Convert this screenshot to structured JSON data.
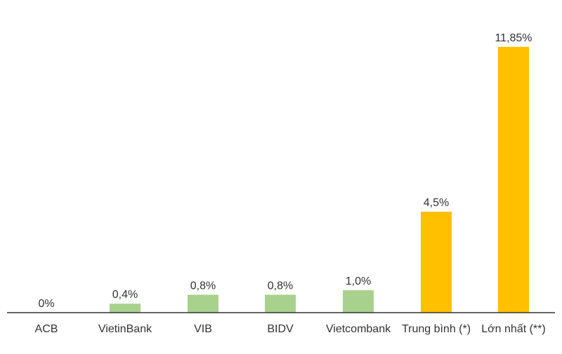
{
  "chart_data": {
    "type": "bar",
    "title": "",
    "xlabel": "",
    "ylabel": "",
    "grid": false,
    "legend": "none",
    "ylim": [
      0,
      12.5
    ],
    "categories": [
      "ACB",
      "VietinBank",
      "VIB",
      "BIDV",
      "Vietcombank",
      "Trung bình (*)",
      "Lớn nhất (**)"
    ],
    "values": [
      0,
      0.4,
      0.8,
      0.8,
      1.0,
      4.5,
      11.85
    ],
    "data_labels": [
      "0%",
      "0,4%",
      "0,8%",
      "0,8%",
      "1,0%",
      "4,5%",
      "11,85%"
    ],
    "bar_colors": [
      "#a9d18e",
      "#a9d18e",
      "#a9d18e",
      "#a9d18e",
      "#a9d18e",
      "#ffc000",
      "#ffc000"
    ],
    "axis_color": "#333333"
  }
}
